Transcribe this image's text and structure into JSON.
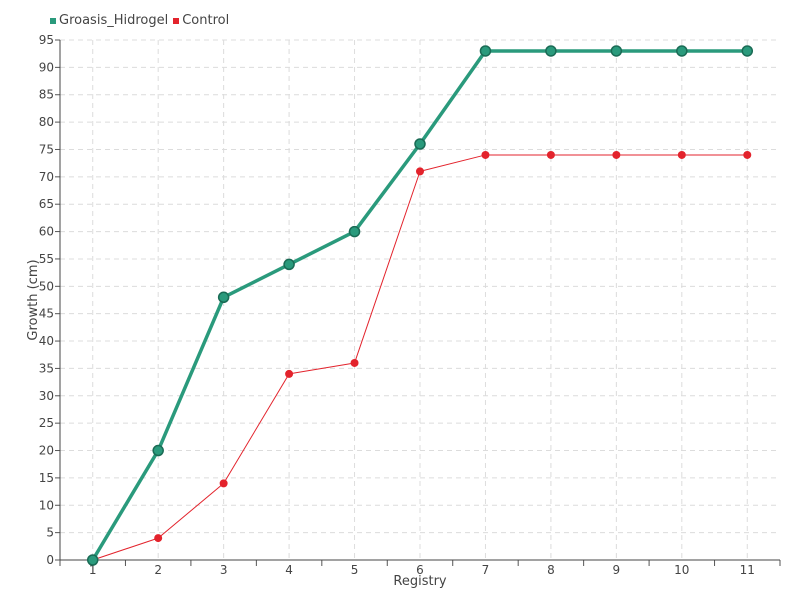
{
  "chart_data": {
    "type": "line",
    "xlabel": "Registry",
    "ylabel": "Growth (cm)",
    "x": [
      1,
      2,
      3,
      4,
      5,
      6,
      7,
      8,
      9,
      10,
      11
    ],
    "ylim": [
      0,
      95
    ],
    "ytick_step": 5,
    "grid": true,
    "legend_position": "top-left",
    "series": [
      {
        "name": "Groasis_Hidrogel",
        "color": "#2a9a7c",
        "values": [
          0,
          20,
          48,
          54,
          60,
          76,
          93,
          93,
          93,
          93,
          93
        ]
      },
      {
        "name": "Control",
        "color": "#e3232c",
        "values": [
          0,
          4,
          14,
          34,
          36,
          71,
          74,
          74,
          74,
          74,
          74
        ]
      }
    ]
  }
}
